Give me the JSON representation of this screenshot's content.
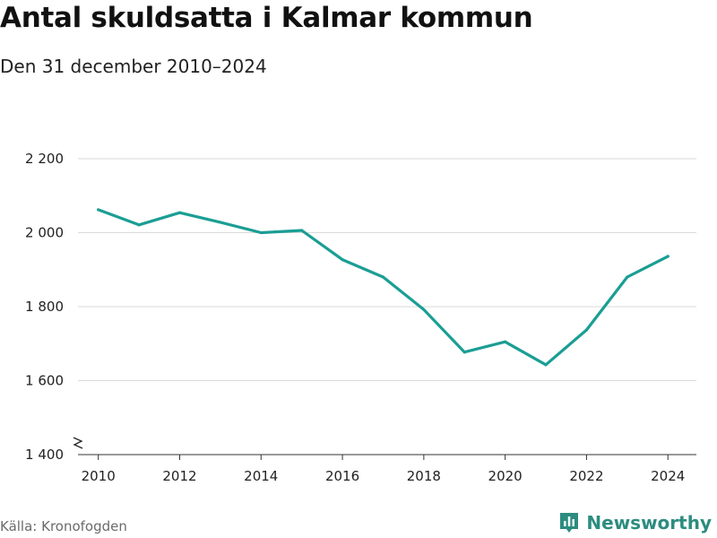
{
  "title": "Antal skuldsatta i Kalmar kommun",
  "subtitle": "Den 31 december 2010–2024",
  "source": "Källa: Kronofogden",
  "brand": {
    "name": "Newsworthy",
    "icon": "bar-chart-icon",
    "color": "#2c8c7f"
  },
  "colors": {
    "line": "#1a9e94",
    "grid": "#d9d9d9",
    "axis": "#333333"
  },
  "chart_data": {
    "type": "line",
    "title": "Antal skuldsatta i Kalmar kommun",
    "subtitle": "Den 31 december 2010–2024",
    "x": [
      2010,
      2011,
      2012,
      2013,
      2014,
      2015,
      2016,
      2017,
      2018,
      2019,
      2020,
      2021,
      2022,
      2023,
      2024
    ],
    "series": [
      {
        "values": [
          2062,
          2021,
          2054,
          2028,
          2000,
          2006,
          1927,
          1880,
          1792,
          1677,
          1705,
          1643,
          1737,
          1880,
          1936
        ]
      }
    ],
    "xticks": [
      2010,
      2012,
      2014,
      2016,
      2018,
      2020,
      2022,
      2024
    ],
    "yticks": [
      1400,
      1600,
      1800,
      2000,
      2200
    ],
    "ytick_labels": [
      "1 400",
      "1 600",
      "1 800",
      "2 000",
      "2 200"
    ],
    "xlim": [
      2009.5,
      2024.7
    ],
    "ylim": [
      1400,
      2200
    ],
    "grid": true,
    "axis_break": true,
    "legend": "none"
  }
}
